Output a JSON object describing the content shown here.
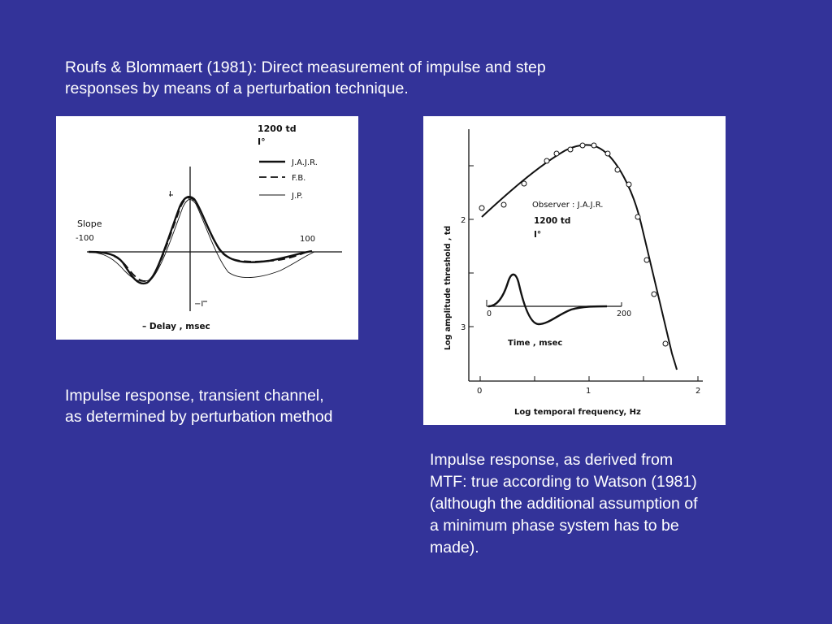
{
  "slide": {
    "title_lines": [
      "Roufs & Blommaert (1981): Direct measurement of impulse and step",
      "responses by means of a perturbation technique."
    ],
    "left_caption_lines": [
      "Impulse response, transient channel,",
      "as determined by perturbation method"
    ],
    "right_caption_lines": [
      "Impulse response, as derived from",
      "MTF: true according to Watson (1981)",
      "(although the additional assumption of",
      "a minimum phase system has to be",
      "made)."
    ],
    "colors": {
      "background": "#333399",
      "text": "#ffffff",
      "figure_bg": "#ffffff"
    }
  },
  "figure_left": {
    "ylabel": "Slope",
    "xlabel": "– Delay ,   msec",
    "tick_left": "-100",
    "tick_right": "100",
    "tick_top": "I",
    "tick_bottom": "−I",
    "condition_1": "1200 td",
    "condition_2": "I°",
    "legend": [
      {
        "name": "J.A.J.R.",
        "style": "solid-thick"
      },
      {
        "name": "F.B.",
        "style": "dashed"
      },
      {
        "name": "J.P.",
        "style": "thin"
      }
    ]
  },
  "figure_right": {
    "xlabel": "Log temporal frequency,   Hz",
    "ylabel": "Log amplitude threshold  ,   td",
    "x_ticks": [
      "0",
      "1",
      "2"
    ],
    "y_ticks": [
      "2",
      "3"
    ],
    "observer": "Observer : J.A.J.R.",
    "condition_1": "1200 td",
    "condition_2": "I°",
    "inset_xlabel": "Time ,     msec",
    "inset_tick_left": "0",
    "inset_tick_right": "200"
  }
}
